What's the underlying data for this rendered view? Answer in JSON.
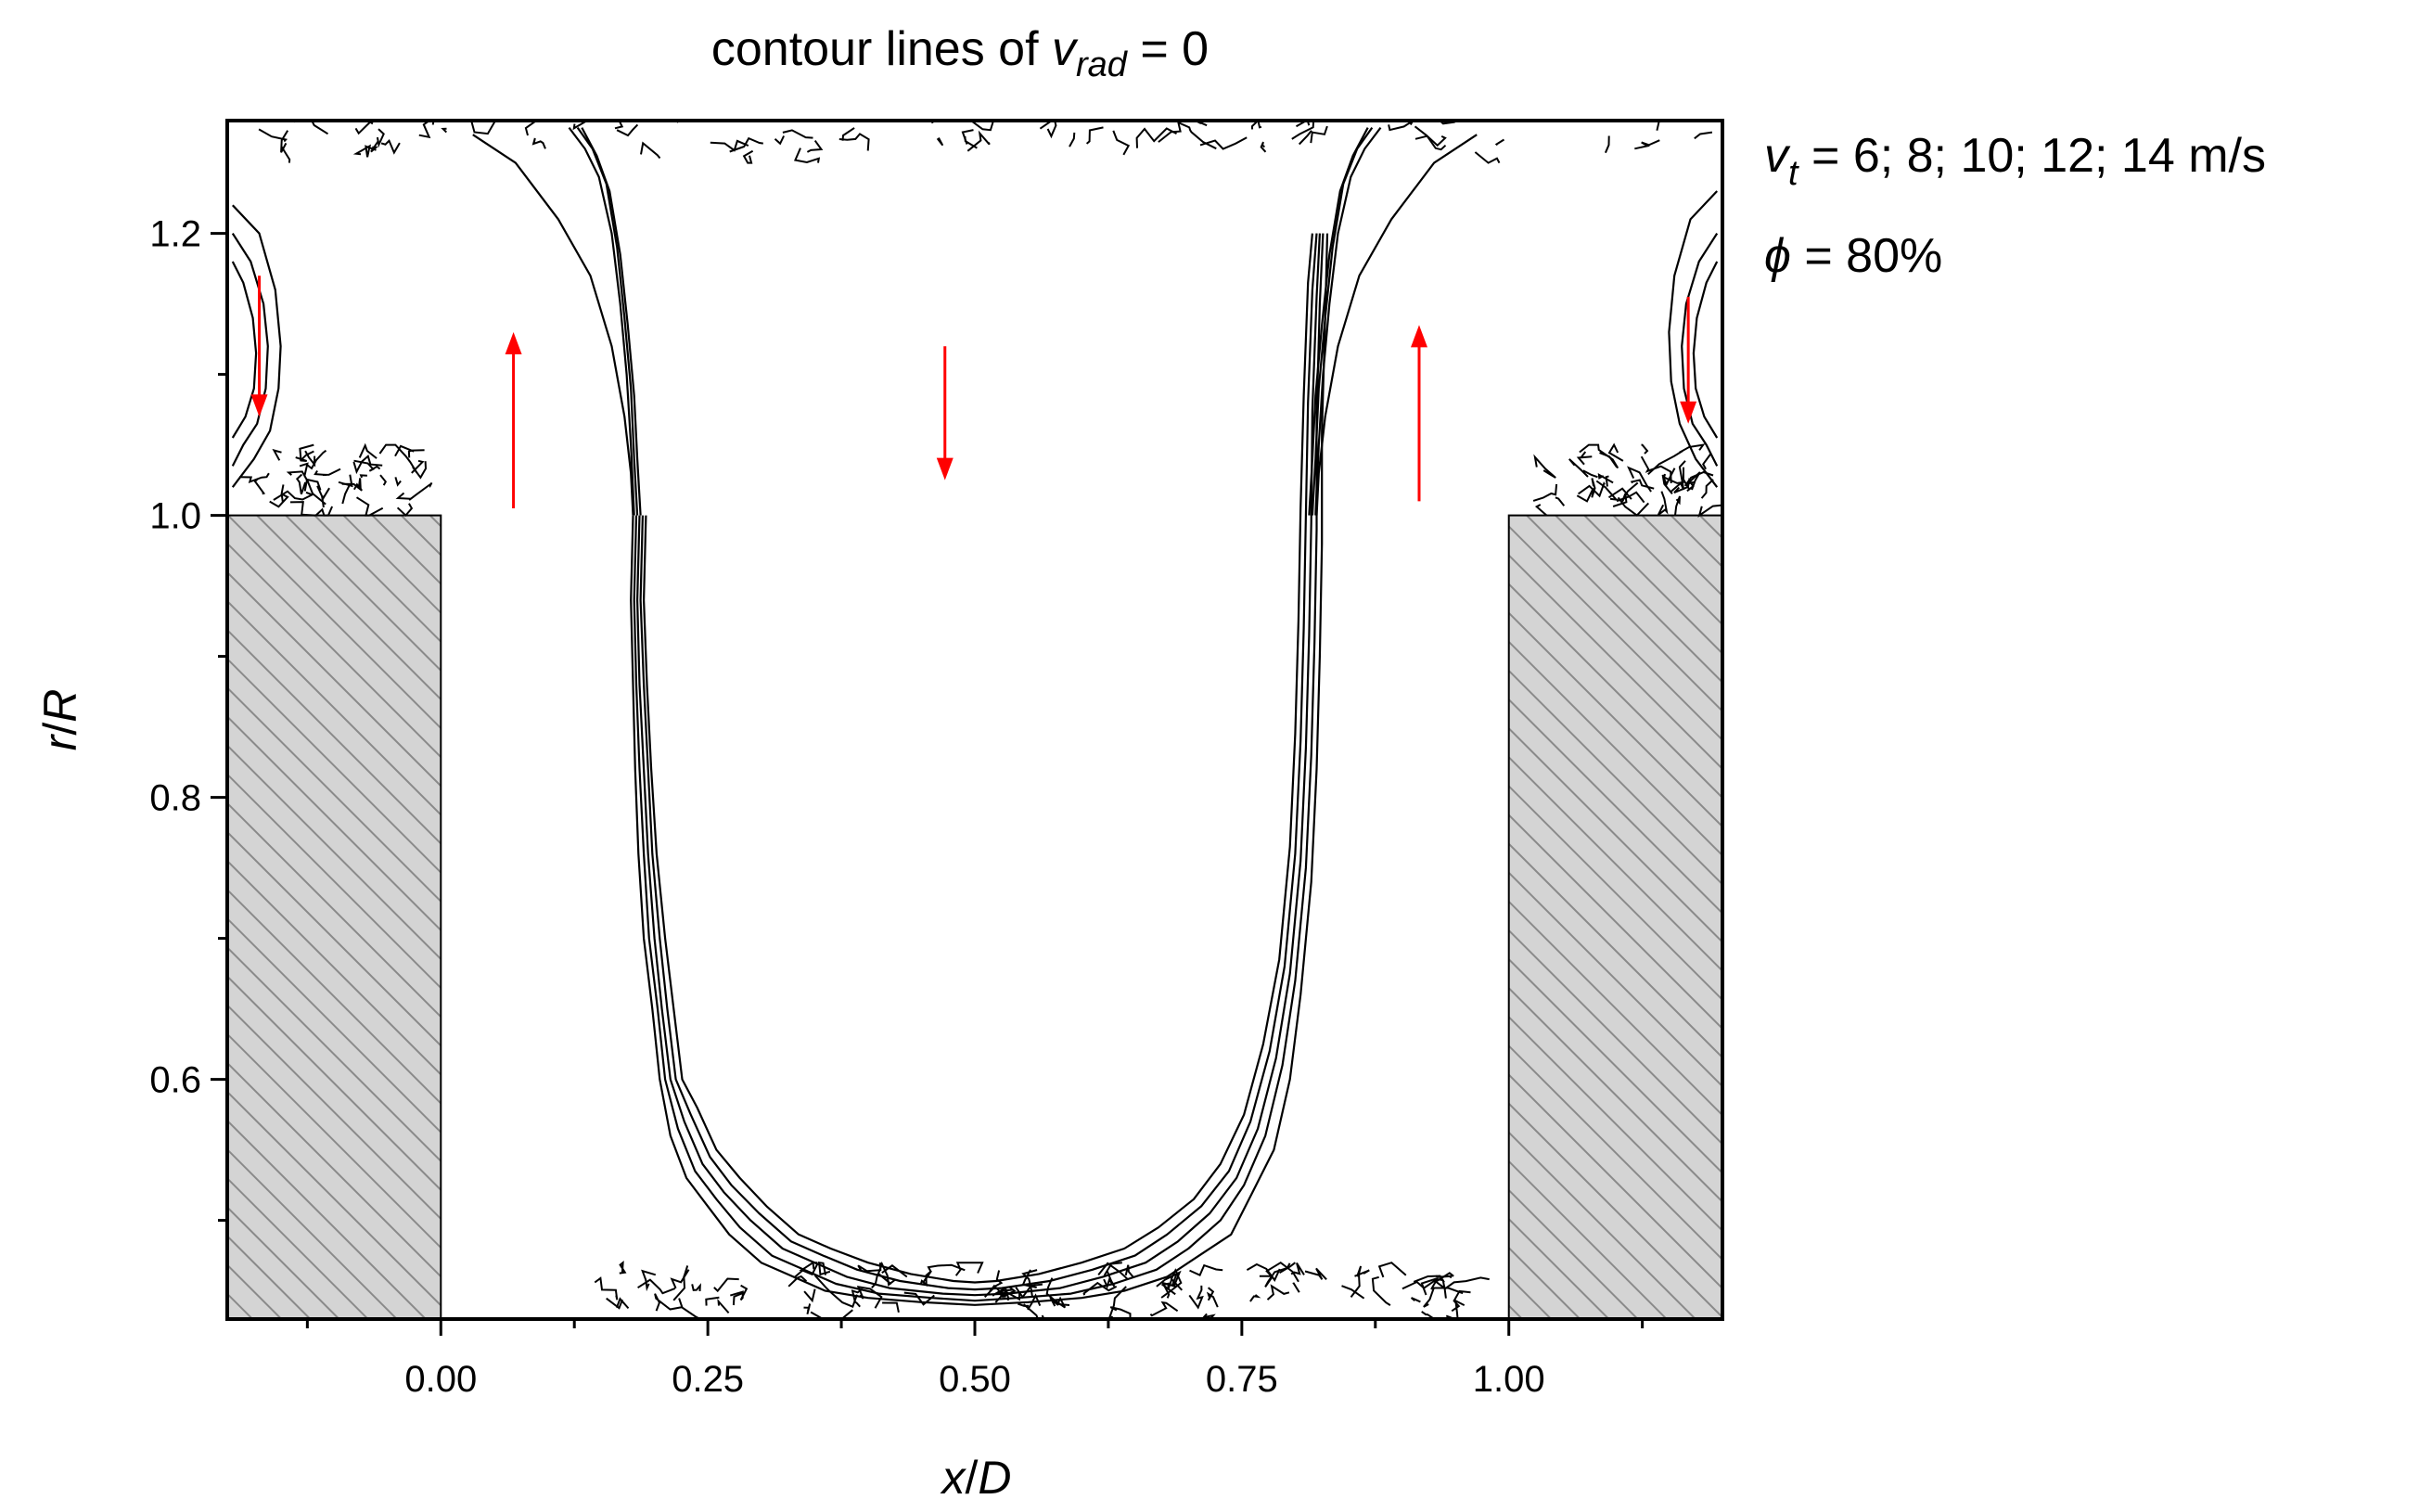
{
  "chart_data": {
    "type": "contour",
    "title": {
      "prefix": "contour lines of ",
      "var": "v",
      "sub": "rad",
      "suffix": " = 0"
    },
    "xlabel": {
      "var": "x",
      "sep": "/",
      "denom": "D"
    },
    "ylabel": {
      "var": "r",
      "sep": "/",
      "denom": "R"
    },
    "xlim": [
      -0.2,
      1.2
    ],
    "ylim": [
      0.43,
      1.28
    ],
    "x_ticks": [
      {
        "value": 0.0,
        "label": "0.00"
      },
      {
        "value": 0.25,
        "label": "0.25"
      },
      {
        "value": 0.5,
        "label": "0.50"
      },
      {
        "value": 0.75,
        "label": "0.75"
      },
      {
        "value": 1.0,
        "label": "1.00"
      }
    ],
    "x_minor_ticks": [
      -0.125,
      0.125,
      0.375,
      0.625,
      0.875,
      1.125
    ],
    "y_ticks": [
      {
        "value": 0.6,
        "label": "0.6"
      },
      {
        "value": 0.8,
        "label": "0.8"
      },
      {
        "value": 1.0,
        "label": "1.0"
      },
      {
        "value": 1.2,
        "label": "1.2"
      }
    ],
    "y_minor_ticks": [
      0.5,
      0.7,
      0.9,
      1.1
    ],
    "annotation": {
      "speeds": {
        "var": "v",
        "sub": "t",
        "text": " = 6; 8; 10; 12; 14 m/s"
      },
      "fill": {
        "var": "ϕ",
        "text": " = 80%"
      }
    },
    "walls": [
      {
        "x0": -0.2,
        "x1": 0.0,
        "y0": 0.43,
        "y1": 1.0
      },
      {
        "x0": 1.0,
        "x1": 1.2,
        "y0": 0.43,
        "y1": 1.0
      }
    ],
    "arrows": [
      {
        "x": -0.17,
        "y_from": 1.17,
        "y_to": 1.07,
        "direction": "down"
      },
      {
        "x": 0.068,
        "y_from": 1.005,
        "y_to": 1.13,
        "direction": "up"
      },
      {
        "x": 0.472,
        "y_from": 1.12,
        "y_to": 1.025,
        "direction": "down"
      },
      {
        "x": 0.916,
        "y_from": 1.01,
        "y_to": 1.135,
        "direction": "up"
      },
      {
        "x": 1.168,
        "y_from": 1.155,
        "y_to": 1.065,
        "direction": "down"
      }
    ],
    "series": [
      {
        "name": "v_t = 6 m/s",
        "x": [
          0.18,
          0.178,
          0.18,
          0.182,
          0.185,
          0.19,
          0.198,
          0.205,
          0.215,
          0.23,
          0.25,
          0.27,
          0.3,
          0.33,
          0.36,
          0.4,
          0.45,
          0.5,
          0.55,
          0.6,
          0.64,
          0.68,
          0.71,
          0.74,
          0.76,
          0.78,
          0.795,
          0.805,
          0.815,
          0.82,
          0.823,
          0.825,
          0.825,
          0.828,
          0.83
        ],
        "y": [
          1.0,
          0.94,
          0.88,
          0.82,
          0.76,
          0.7,
          0.65,
          0.6,
          0.56,
          0.53,
          0.51,
          0.49,
          0.47,
          0.46,
          0.45,
          0.445,
          0.442,
          0.44,
          0.442,
          0.445,
          0.45,
          0.46,
          0.475,
          0.49,
          0.52,
          0.55,
          0.6,
          0.66,
          0.74,
          0.82,
          0.9,
          0.98,
          1.06,
          1.14,
          1.2
        ]
      },
      {
        "name": "v_t = 8 m/s",
        "x": [
          0.183,
          0.181,
          0.183,
          0.186,
          0.19,
          0.195,
          0.203,
          0.21,
          0.222,
          0.238,
          0.258,
          0.28,
          0.31,
          0.34,
          0.37,
          0.41,
          0.46,
          0.5,
          0.54,
          0.59,
          0.63,
          0.67,
          0.7,
          0.73,
          0.752,
          0.772,
          0.788,
          0.8,
          0.81,
          0.815,
          0.818,
          0.82,
          0.82,
          0.823,
          0.826
        ],
        "y": [
          1.0,
          0.94,
          0.88,
          0.82,
          0.76,
          0.7,
          0.65,
          0.6,
          0.565,
          0.535,
          0.515,
          0.495,
          0.475,
          0.465,
          0.455,
          0.448,
          0.445,
          0.443,
          0.445,
          0.448,
          0.455,
          0.465,
          0.48,
          0.5,
          0.525,
          0.56,
          0.61,
          0.67,
          0.75,
          0.83,
          0.91,
          0.99,
          1.07,
          1.15,
          1.2
        ]
      },
      {
        "name": "v_t = 10 m/s",
        "x": [
          0.186,
          0.184,
          0.186,
          0.19,
          0.194,
          0.2,
          0.207,
          0.215,
          0.228,
          0.245,
          0.265,
          0.29,
          0.32,
          0.35,
          0.38,
          0.42,
          0.47,
          0.5,
          0.53,
          0.58,
          0.62,
          0.66,
          0.69,
          0.72,
          0.745,
          0.765,
          0.782,
          0.795,
          0.805,
          0.81,
          0.813,
          0.815,
          0.816,
          0.82,
          0.823
        ],
        "y": [
          1.0,
          0.94,
          0.88,
          0.82,
          0.76,
          0.7,
          0.65,
          0.6,
          0.57,
          0.54,
          0.52,
          0.5,
          0.48,
          0.47,
          0.46,
          0.452,
          0.448,
          0.447,
          0.448,
          0.452,
          0.46,
          0.47,
          0.485,
          0.505,
          0.53,
          0.565,
          0.615,
          0.675,
          0.755,
          0.835,
          0.915,
          0.995,
          1.075,
          1.155,
          1.2
        ]
      },
      {
        "name": "v_t = 12 m/s",
        "x": [
          0.189,
          0.187,
          0.19,
          0.194,
          0.198,
          0.205,
          0.212,
          0.22,
          0.234,
          0.252,
          0.272,
          0.298,
          0.328,
          0.358,
          0.39,
          0.43,
          0.475,
          0.5,
          0.525,
          0.57,
          0.61,
          0.65,
          0.68,
          0.712,
          0.738,
          0.758,
          0.776,
          0.79,
          0.8,
          0.805,
          0.808,
          0.81,
          0.812,
          0.816,
          0.82
        ],
        "y": [
          1.0,
          0.94,
          0.88,
          0.82,
          0.76,
          0.7,
          0.65,
          0.6,
          0.575,
          0.545,
          0.525,
          0.505,
          0.485,
          0.475,
          0.465,
          0.457,
          0.452,
          0.451,
          0.452,
          0.457,
          0.465,
          0.475,
          0.49,
          0.51,
          0.535,
          0.57,
          0.62,
          0.68,
          0.76,
          0.84,
          0.92,
          1.0,
          1.08,
          1.16,
          1.2
        ]
      },
      {
        "name": "v_t = 14 m/s",
        "x": [
          0.192,
          0.19,
          0.193,
          0.197,
          0.202,
          0.21,
          0.218,
          0.226,
          0.24,
          0.258,
          0.28,
          0.305,
          0.335,
          0.365,
          0.4,
          0.44,
          0.48,
          0.5,
          0.52,
          0.56,
          0.6,
          0.64,
          0.672,
          0.705,
          0.73,
          0.752,
          0.77,
          0.785,
          0.795,
          0.8,
          0.803,
          0.805,
          0.808,
          0.812,
          0.816
        ],
        "y": [
          1.0,
          0.94,
          0.88,
          0.82,
          0.76,
          0.7,
          0.65,
          0.6,
          0.58,
          0.55,
          0.53,
          0.51,
          0.49,
          0.48,
          0.47,
          0.462,
          0.457,
          0.456,
          0.457,
          0.462,
          0.47,
          0.48,
          0.495,
          0.515,
          0.54,
          0.575,
          0.625,
          0.685,
          0.765,
          0.845,
          0.925,
          1.005,
          1.085,
          1.165,
          1.2
        ]
      }
    ],
    "upper_branches": [
      {
        "side": "left",
        "x": [
          0.03,
          0.07,
          0.11,
          0.14,
          0.16,
          0.172,
          0.178,
          0.18
        ],
        "y": [
          1.27,
          1.25,
          1.21,
          1.17,
          1.12,
          1.07,
          1.03,
          1.0
        ]
      },
      {
        "side": "left",
        "x": [
          0.12,
          0.135,
          0.148,
          0.16,
          0.168,
          0.174,
          0.178,
          0.181
        ],
        "y": [
          1.275,
          1.26,
          1.24,
          1.2,
          1.15,
          1.1,
          1.05,
          1.0
        ]
      },
      {
        "side": "left",
        "x": [
          0.128,
          0.142,
          0.155,
          0.165,
          0.172,
          0.178,
          0.181,
          0.184
        ],
        "y": [
          1.275,
          1.26,
          1.235,
          1.19,
          1.14,
          1.09,
          1.04,
          1.0
        ]
      },
      {
        "side": "left",
        "x": [
          0.132,
          0.146,
          0.158,
          0.168,
          0.175,
          0.181,
          0.184,
          0.187
        ],
        "y": [
          1.275,
          1.255,
          1.23,
          1.185,
          1.135,
          1.085,
          1.04,
          1.0
        ]
      }
    ],
    "noise_clusters": [
      {
        "region": "top",
        "x_range": [
          -0.18,
          1.18
        ],
        "y_range": [
          1.255,
          1.28
        ],
        "count": 60
      },
      {
        "region": "left-ledge",
        "x_range": [
          -0.19,
          -0.02
        ],
        "y_range": [
          1.005,
          1.045
        ],
        "count": 40
      },
      {
        "region": "right-ledge",
        "x_range": [
          1.02,
          1.19
        ],
        "y_range": [
          1.005,
          1.045
        ],
        "count": 40
      },
      {
        "region": "bottom",
        "x_range": [
          0.13,
          0.95
        ],
        "y_range": [
          0.432,
          0.465
        ],
        "count": 90
      }
    ],
    "corner_loops": [
      {
        "side": "left",
        "x": [
          -0.195,
          -0.17,
          -0.155,
          -0.15,
          -0.152,
          -0.16,
          -0.175,
          -0.195
        ],
        "y": [
          1.22,
          1.2,
          1.16,
          1.12,
          1.09,
          1.06,
          1.04,
          1.02
        ]
      },
      {
        "side": "left",
        "x": [
          -0.195,
          -0.178,
          -0.166,
          -0.162,
          -0.164,
          -0.172,
          -0.185,
          -0.195
        ],
        "y": [
          1.2,
          1.18,
          1.15,
          1.12,
          1.09,
          1.065,
          1.05,
          1.035
        ]
      },
      {
        "side": "left",
        "x": [
          -0.195,
          -0.185,
          -0.176,
          -0.173,
          -0.175,
          -0.183,
          -0.195
        ],
        "y": [
          1.18,
          1.165,
          1.14,
          1.115,
          1.09,
          1.07,
          1.055
        ]
      },
      {
        "side": "right",
        "x": [
          1.195,
          1.17,
          1.155,
          1.15,
          1.152,
          1.16,
          1.175,
          1.195
        ],
        "y": [
          1.23,
          1.21,
          1.17,
          1.13,
          1.095,
          1.065,
          1.04,
          1.02
        ]
      },
      {
        "side": "right",
        "x": [
          1.195,
          1.178,
          1.166,
          1.162,
          1.164,
          1.172,
          1.185,
          1.195
        ],
        "y": [
          1.2,
          1.18,
          1.15,
          1.12,
          1.09,
          1.065,
          1.05,
          1.035
        ]
      },
      {
        "side": "right",
        "x": [
          1.195,
          1.185,
          1.176,
          1.173,
          1.175,
          1.183,
          1.195
        ],
        "y": [
          1.18,
          1.165,
          1.14,
          1.115,
          1.09,
          1.07,
          1.055
        ]
      }
    ],
    "colors": {
      "contour": "#000000",
      "arrow": "#ff0000",
      "wall_fill": "#d4d4d4",
      "hatch": "#8a8a8a"
    }
  }
}
